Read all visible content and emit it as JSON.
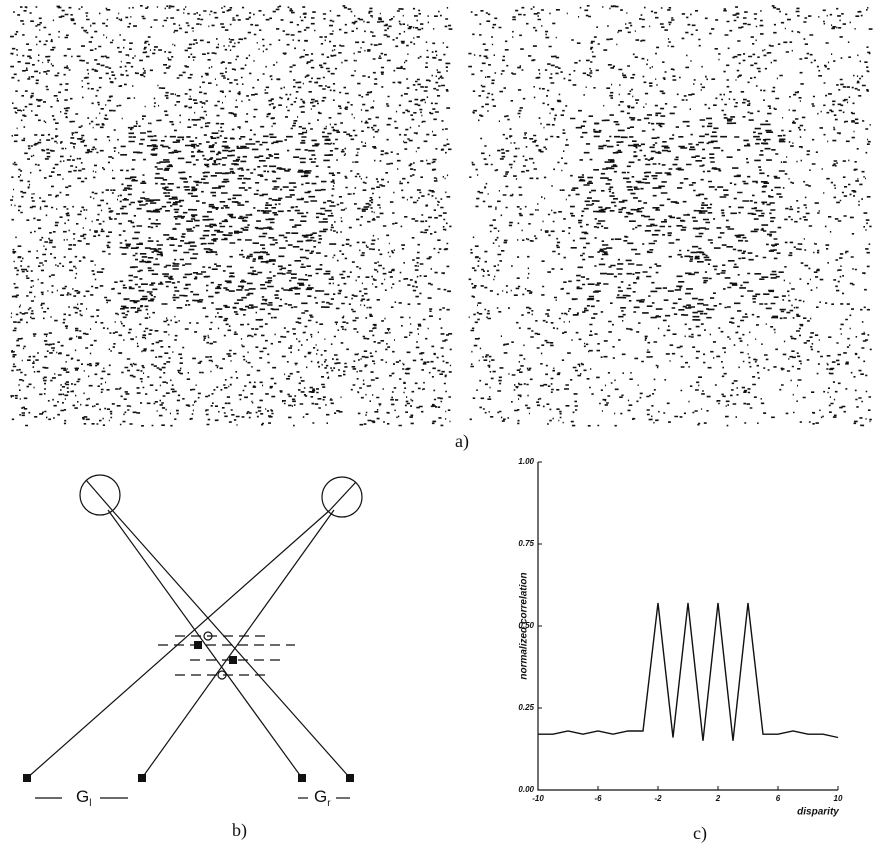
{
  "figure_labels": {
    "a": "a)",
    "b": "b)",
    "c": "c)"
  },
  "diagram": {
    "left_group": "G",
    "left_subscript": "l",
    "right_group": "G",
    "right_subscript": "r"
  },
  "chart_data": {
    "type": "line",
    "y_label": "normalized correlation",
    "x_label": "disparity",
    "x": [
      -10,
      -9,
      -8,
      -7,
      -6,
      -5,
      -4,
      -3,
      -2,
      -1,
      0,
      1,
      2,
      3,
      4,
      5,
      6,
      7,
      8,
      9,
      10
    ],
    "values": [
      0.17,
      0.17,
      0.18,
      0.17,
      0.18,
      0.17,
      0.18,
      0.18,
      0.57,
      0.16,
      0.57,
      0.15,
      0.57,
      0.15,
      0.57,
      0.17,
      0.17,
      0.18,
      0.17,
      0.17,
      0.16
    ],
    "color": "#111111",
    "xlim": [
      -10,
      10
    ],
    "xticks": [
      -10,
      -6,
      -2,
      2,
      6,
      10
    ],
    "ylim": [
      0,
      1
    ],
    "yticks": [
      {
        "value": 0,
        "label": "0.00"
      },
      {
        "value": 0.25,
        "label": "0.25"
      },
      {
        "value": 0.5,
        "label": "0.50"
      },
      {
        "value": 0.75,
        "label": "0.75"
      },
      {
        "value": 1,
        "label": "1.00"
      }
    ]
  }
}
